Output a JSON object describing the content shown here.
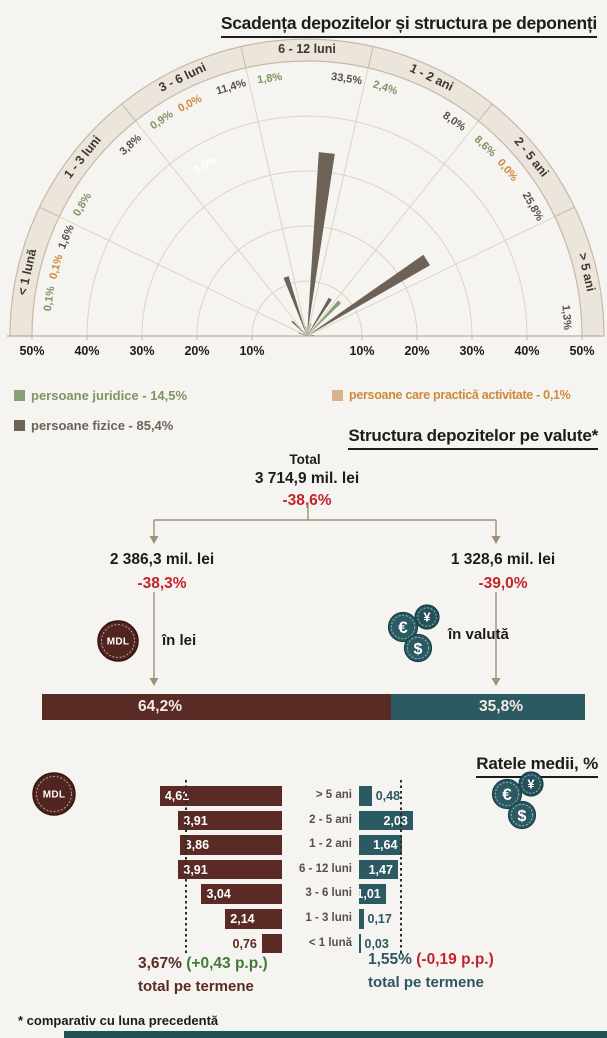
{
  "title": "Scadența depozitelor și structura pe deponenți",
  "footnote": "* comparativ cu luna precedentă",
  "colors": {
    "background": "#f6f4f0",
    "ink": "#1d1c1a",
    "band_fill": "#ece5dc",
    "band_border": "#c6b9a7",
    "grid": "#dcd3c5",
    "fizice": "#6e6256",
    "juridice": "#8a9f76",
    "activitate": "#d8b28a",
    "juridice_text": "#7e9465",
    "activitate_text": "#cc8a3d",
    "fizice_text": "#57514b",
    "maroon": "#5a2a25",
    "teal": "#2b5a63",
    "teal_text": "#2c5661",
    "red": "#c4232a",
    "green": "#3f7c33",
    "connector": "#a28f79",
    "footer_bar": "#215059"
  },
  "legend": {
    "juridice": "persoane juridice - 14,5%",
    "fizice": "persoane fizice - 85,4%",
    "activitate": "persoane care practică activitate - 0,1%"
  },
  "currency_section": {
    "heading": "Structura depozitelor pe valute*",
    "total_label": "Total",
    "total_value": "3 714,9 mil. lei",
    "total_change": "-38,6%",
    "left": {
      "amount": "2 386,3 mil. lei",
      "change": "-38,3%",
      "caption": "în lei",
      "coin_text": "MDL"
    },
    "right": {
      "amount": "1 328,6 mil. lei",
      "change": "-39,0%",
      "caption": "în valută",
      "coin_symbols": [
        "€",
        "¥",
        "$"
      ]
    }
  },
  "rates_section": {
    "heading": "Ratele medii, %",
    "totals": {
      "mdl": {
        "rate": "3,67%",
        "pp": "(+0,43 p.p.)",
        "caption": "total pe termene"
      },
      "fx": {
        "rate": "1,55%",
        "pp": "(-0,19 p.p.)",
        "caption": "total pe termene"
      }
    }
  },
  "chart_data": [
    {
      "type": "polar_bar",
      "title": "Scadența depozitelor și structura pe deponenți",
      "unit": "% of total deposits",
      "rlim": [
        0,
        50
      ],
      "axis_ticks": [
        "10%",
        "20%",
        "30%",
        "40%",
        "50%"
      ],
      "categories": [
        "< 1 lună",
        "1 - 3 luni",
        "3 - 6 luni",
        "6 - 12 luni",
        "1 - 2 ani",
        "2 - 5 ani",
        "> 5 ani"
      ],
      "series": [
        {
          "name": "persoane juridice",
          "color_key": "juridice",
          "values": [
            0.1,
            0.8,
            0.9,
            1.8,
            2.4,
            8.6,
            null
          ],
          "labels": [
            "0,1%",
            "0,8%",
            "0,9%",
            "1,8%",
            "2,4%",
            "8,6%",
            ""
          ]
        },
        {
          "name": "persoane care practică activitate",
          "color_key": "activitate",
          "values": [
            0.1,
            null,
            0.0,
            null,
            null,
            0.0,
            null
          ],
          "labels": [
            "0,1%",
            "",
            "0,0%",
            "",
            "",
            "0,0%",
            ""
          ]
        },
        {
          "name": "persoane fizice",
          "color_key": "fizice",
          "values": [
            1.6,
            3.8,
            11.4,
            33.5,
            8.0,
            25.8,
            1.3
          ],
          "labels": [
            "1,6%",
            "3,8%",
            "11,4%",
            "33,5%",
            "8,0%",
            "25,8%",
            "1,3%"
          ]
        }
      ],
      "floating_label": "0,0%"
    },
    {
      "type": "stacked_bar",
      "title": "Structura depozitelor pe valute",
      "segments": [
        {
          "name": "în lei",
          "label": "64,2%",
          "value": 64.2,
          "color_key": "maroon"
        },
        {
          "name": "în valută",
          "label": "35,8%",
          "value": 35.8,
          "color_key": "teal"
        }
      ]
    },
    {
      "type": "bar",
      "title": "Ratele medii, %",
      "orientation": "tornado",
      "categories": [
        "> 5 ani",
        "2 - 5 ani",
        "1 - 2 ani",
        "6 - 12 luni",
        "3 - 6 luni",
        "1 - 3 luni",
        "< 1 lună"
      ],
      "series": [
        {
          "name": "în lei (MDL)",
          "color_key": "maroon",
          "average": 3.67,
          "values": [
            4.61,
            3.91,
            3.86,
            3.91,
            3.04,
            2.14,
            0.76
          ],
          "labels": [
            "4,61",
            "3,91",
            "3,86",
            "3,91",
            "3,04",
            "2,14",
            "0,76"
          ]
        },
        {
          "name": "în valută",
          "color_key": "teal",
          "average": 1.55,
          "values": [
            0.48,
            2.03,
            1.64,
            1.47,
            1.01,
            0.17,
            0.03
          ],
          "labels": [
            "0,48",
            "2,03",
            "1,64",
            "1,47",
            "1,01",
            "0,17",
            "0,03"
          ]
        }
      ]
    }
  ]
}
